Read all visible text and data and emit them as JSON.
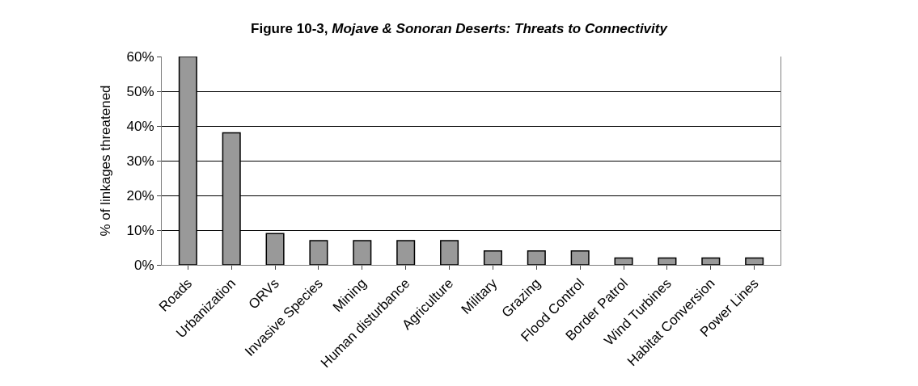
{
  "chart_data": {
    "type": "bar",
    "title": "Figure 10-3, Mojave & Sonoran Deserts: Threats to Connectivity",
    "ylabel": "% of linkages threatened",
    "categories": [
      "Roads",
      "Urbanization",
      "ORVs",
      "Invasive Species",
      "Mining",
      "Human disturbance",
      "Agriculture",
      "Military",
      "Grazing",
      "Flood Control",
      "Border Patrol",
      "Wind Turbines",
      "Habitat Conversion",
      "Power Lines"
    ],
    "values": [
      60,
      38,
      9,
      7,
      7,
      7,
      7,
      4,
      4,
      4,
      2,
      2,
      2,
      2
    ],
    "color": "#999999",
    "ylim": [
      0,
      60
    ],
    "yticks": [
      {
        "value": 0,
        "label": "0%"
      },
      {
        "value": 10,
        "label": "10%"
      },
      {
        "value": 20,
        "label": "20%"
      },
      {
        "value": 30,
        "label": "30%"
      },
      {
        "value": 40,
        "label": "40%"
      },
      {
        "value": 50,
        "label": "50%"
      },
      {
        "value": 60,
        "label": "60%"
      }
    ],
    "grid": "y",
    "legend": false
  }
}
